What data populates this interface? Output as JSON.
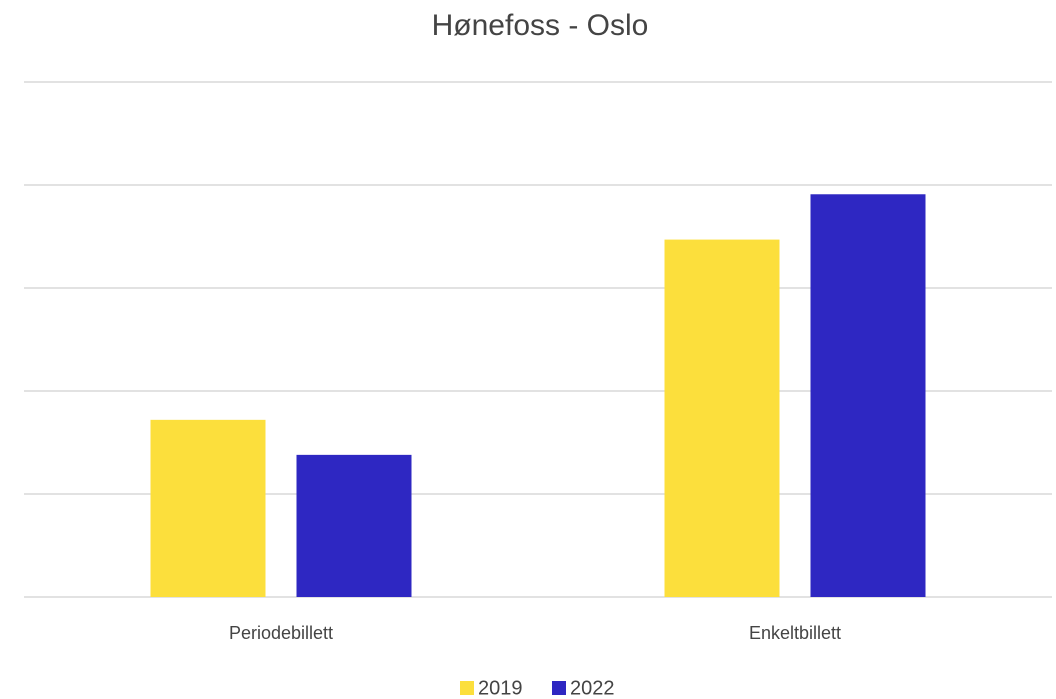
{
  "chart_data": {
    "type": "bar",
    "title": "Hønefoss - Oslo",
    "categories": [
      "Periodebillett",
      "Enkeltbillett"
    ],
    "series": [
      {
        "name": "2019",
        "color": "#fcdf3c",
        "values": [
          1.72,
          3.47
        ]
      },
      {
        "name": "2022",
        "color": "#2e27c2",
        "values": [
          1.38,
          3.91
        ]
      }
    ],
    "ylim": [
      0,
      5
    ],
    "yticks": [
      0,
      1,
      2,
      3,
      4,
      5
    ],
    "grid": true
  }
}
